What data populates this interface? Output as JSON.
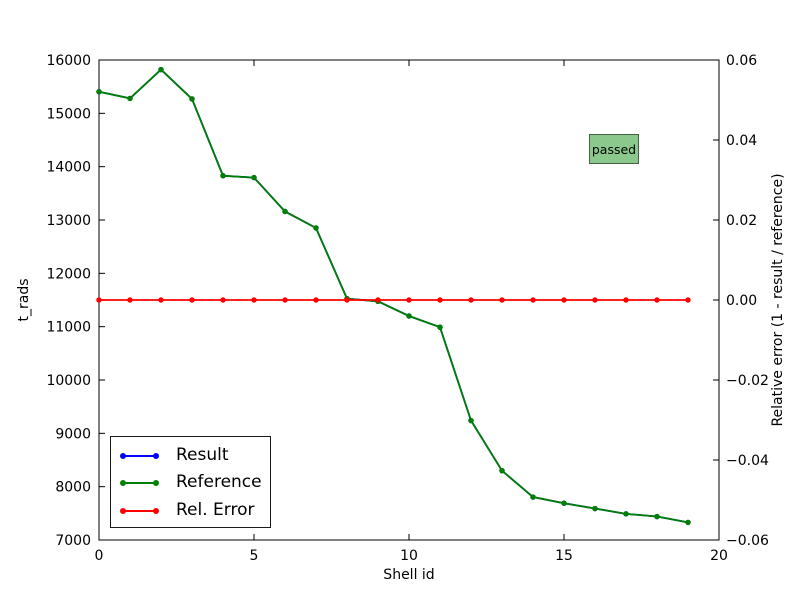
{
  "badge": {
    "text": "passed",
    "bg_color": "#8bc88b",
    "border_color": "#4a5f4a"
  },
  "chart_data": {
    "type": "line",
    "x": [
      0,
      1,
      2,
      3,
      4,
      5,
      6,
      7,
      8,
      9,
      10,
      11,
      12,
      13,
      14,
      15,
      16,
      17,
      18,
      19
    ],
    "series": [
      {
        "name": "Result",
        "color": "#0000ff",
        "axis": "left",
        "values": [
          15405,
          15280,
          15820,
          15270,
          13830,
          13795,
          13160,
          12850,
          11525,
          11475,
          11200,
          10990,
          9240,
          8300,
          7805,
          7690,
          7590,
          7490,
          7440,
          7330
        ],
        "note": "hidden beneath Reference (identical values)"
      },
      {
        "name": "Reference",
        "color": "#008000",
        "axis": "left",
        "values": [
          15405,
          15280,
          15820,
          15270,
          13830,
          13795,
          13160,
          12850,
          11525,
          11475,
          11200,
          10990,
          9240,
          8300,
          7805,
          7690,
          7590,
          7490,
          7440,
          7330
        ]
      },
      {
        "name": "Rel. Error",
        "color": "#ff0000",
        "axis": "right",
        "values": [
          0,
          0,
          0,
          0,
          0,
          0,
          0,
          0,
          0,
          0,
          0,
          0,
          0,
          0,
          0,
          0,
          0,
          0,
          0,
          0
        ]
      }
    ],
    "xlabel": "Shell id",
    "ylabel_left": "t_rads",
    "ylabel_right": "Relative error (1 - result / reference)",
    "xlim": [
      0,
      20
    ],
    "ylim_left": [
      7000,
      16000
    ],
    "ylim_right": [
      -0.06,
      0.06
    ],
    "xticks": [
      0,
      5,
      10,
      15,
      20
    ],
    "xtick_labels": [
      "0",
      "5",
      "10",
      "15",
      "20"
    ],
    "yticks_left": [
      7000,
      8000,
      9000,
      10000,
      11000,
      12000,
      13000,
      14000,
      15000,
      16000
    ],
    "ytick_labels_left": [
      "7000",
      "8000",
      "9000",
      "10000",
      "11000",
      "12000",
      "13000",
      "14000",
      "15000",
      "16000"
    ],
    "yticks_right": [
      -0.06,
      -0.04,
      -0.02,
      0.0,
      0.02,
      0.04,
      0.06
    ],
    "ytick_labels_right": [
      "−0.06",
      "−0.04",
      "−0.02",
      "0.00",
      "0.02",
      "0.04",
      "0.06"
    ],
    "grid": false,
    "legend_position": "lower left",
    "legend_entries": [
      "Result",
      "Reference",
      "Rel. Error"
    ]
  }
}
